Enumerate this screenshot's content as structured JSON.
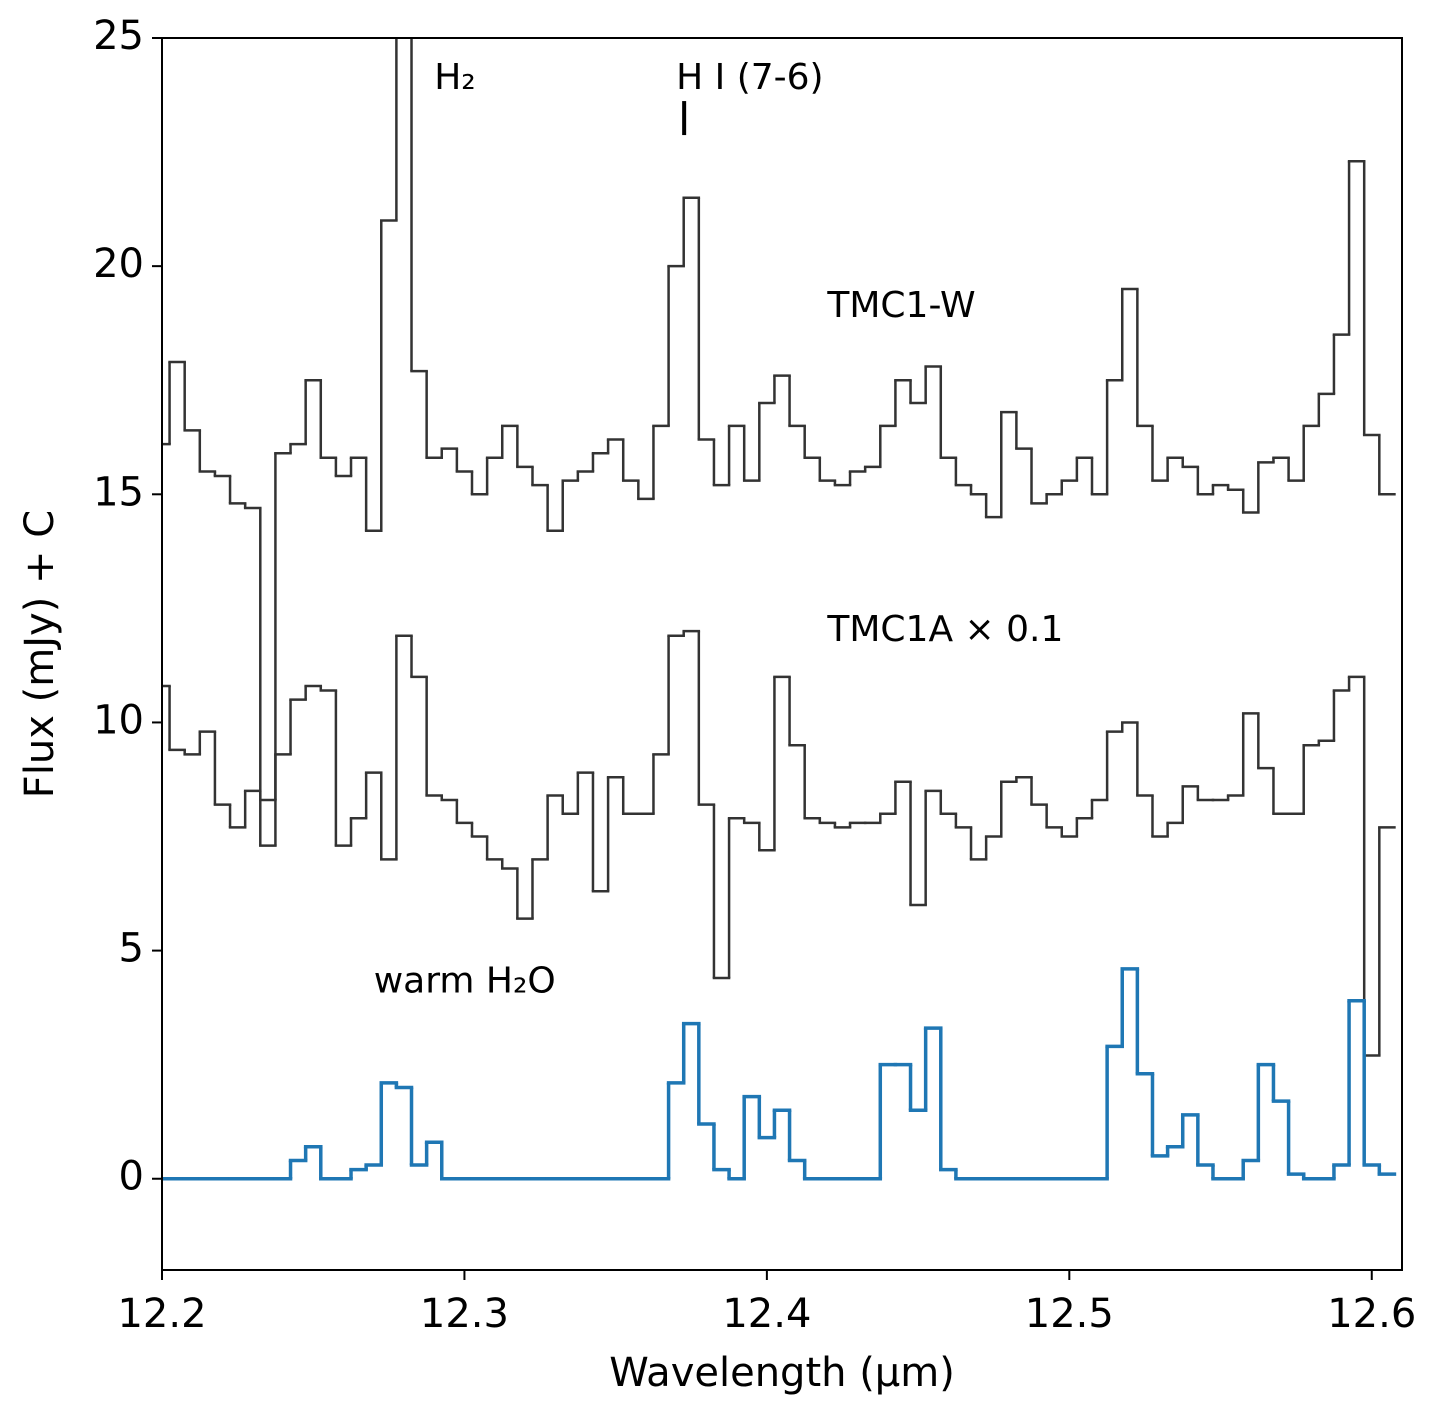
{
  "chart_data": {
    "type": "step",
    "xlabel": "Wavelength (μm)",
    "ylabel": "Flux (mJy) + C",
    "xlim": [
      12.2,
      12.61
    ],
    "ylim": [
      -2,
      25
    ],
    "xticks": [
      12.2,
      12.3,
      12.4,
      12.5,
      12.6
    ],
    "yticks": [
      0,
      5,
      10,
      15,
      20,
      25
    ],
    "x": [
      12.2,
      12.205,
      12.21,
      12.215,
      12.22,
      12.225,
      12.23,
      12.235,
      12.24,
      12.245,
      12.25,
      12.255,
      12.26,
      12.265,
      12.27,
      12.275,
      12.28,
      12.285,
      12.29,
      12.295,
      12.3,
      12.305,
      12.31,
      12.315,
      12.32,
      12.325,
      12.33,
      12.335,
      12.34,
      12.345,
      12.35,
      12.355,
      12.36,
      12.365,
      12.37,
      12.375,
      12.38,
      12.385,
      12.39,
      12.395,
      12.4,
      12.405,
      12.41,
      12.415,
      12.42,
      12.425,
      12.43,
      12.435,
      12.44,
      12.445,
      12.45,
      12.455,
      12.46,
      12.465,
      12.47,
      12.475,
      12.48,
      12.485,
      12.49,
      12.495,
      12.5,
      12.505,
      12.51,
      12.515,
      12.52,
      12.525,
      12.53,
      12.535,
      12.54,
      12.545,
      12.55,
      12.555,
      12.56,
      12.565,
      12.57,
      12.575,
      12.58,
      12.585,
      12.59,
      12.595,
      12.6,
      12.605
    ],
    "series": [
      {
        "color": "#333333",
        "values": [
          16.1,
          17.9,
          16.4,
          15.5,
          15.4,
          14.8,
          14.7,
          8.3,
          15.9,
          16.1,
          17.5,
          15.8,
          15.4,
          15.8,
          14.2,
          21.0,
          27,
          17.7,
          15.8,
          16.0,
          15.5,
          15.0,
          15.8,
          16.5,
          15.6,
          15.2,
          14.2,
          15.3,
          15.5,
          15.9,
          16.2,
          15.3,
          14.9,
          16.5,
          20.0,
          21.5,
          16.2,
          15.2,
          16.5,
          15.3,
          17.0,
          17.6,
          16.5,
          15.8,
          15.3,
          15.2,
          15.5,
          15.6,
          16.5,
          17.5,
          17.0,
          17.8,
          15.8,
          15.2,
          15.0,
          14.5,
          16.8,
          16.0,
          14.8,
          15.0,
          15.3,
          15.8,
          15.0,
          17.5,
          19.5,
          16.5,
          15.3,
          15.8,
          15.6,
          15.0,
          15.2,
          15.1,
          14.6,
          15.7,
          15.8,
          15.3,
          16.5,
          17.2,
          18.5,
          22.3,
          16.3,
          15.0
        ]
      },
      {
        "color": "#333333",
        "values": [
          10.8,
          9.4,
          9.3,
          9.8,
          8.2,
          7.7,
          8.5,
          7.3,
          9.3,
          10.5,
          10.8,
          10.7,
          7.3,
          7.9,
          8.9,
          7.0,
          11.9,
          11.0,
          8.4,
          8.3,
          7.8,
          7.5,
          7.0,
          6.8,
          5.7,
          7.0,
          8.4,
          8.0,
          8.9,
          6.3,
          8.8,
          8.0,
          8.0,
          9.3,
          11.9,
          12.0,
          8.2,
          4.4,
          7.9,
          7.8,
          7.2,
          11.0,
          9.5,
          7.9,
          7.8,
          7.7,
          7.8,
          7.8,
          8.0,
          8.7,
          6.0,
          8.5,
          8.0,
          7.7,
          7.0,
          7.5,
          8.7,
          8.8,
          8.2,
          7.7,
          7.5,
          7.9,
          8.3,
          9.8,
          10.0,
          8.4,
          7.5,
          7.8,
          8.6,
          8.3,
          8.3,
          8.4,
          10.2,
          9.0,
          8.0,
          8.0,
          9.5,
          9.6,
          10.7,
          11.0,
          2.7,
          7.7
        ]
      },
      {
        "color": "#1f77b4",
        "values": [
          0,
          0,
          0,
          0,
          0,
          0,
          0,
          0,
          0,
          0.4,
          0.7,
          0,
          0,
          0.2,
          0.3,
          2.1,
          2.0,
          0.3,
          0.8,
          0,
          0,
          0,
          0,
          0,
          0,
          0,
          0,
          0,
          0,
          0,
          0,
          0,
          0,
          0,
          2.1,
          3.4,
          1.2,
          0.2,
          0,
          1.8,
          0.9,
          1.5,
          0.4,
          0,
          0,
          0,
          0,
          0,
          2.5,
          2.5,
          1.5,
          3.3,
          0.2,
          0,
          0,
          0,
          0,
          0,
          0,
          0,
          0,
          0,
          0,
          2.9,
          4.6,
          2.3,
          0.5,
          0.7,
          1.4,
          0.3,
          0,
          0,
          0.4,
          2.5,
          1.7,
          0.1,
          0,
          0,
          0.3,
          3.9,
          0.3,
          0.1
        ]
      }
    ],
    "annotations": [
      {
        "text": "H₂",
        "x": 12.29,
        "y": 24.1,
        "color": "#808080"
      },
      {
        "text": "H I (7-6)",
        "x": 12.37,
        "y": 24.1,
        "color": "#000000"
      },
      {
        "text": "TMC1-W",
        "x": 12.42,
        "y": 19.1,
        "color": "#000000"
      },
      {
        "text": "TMC1A × 0.1",
        "x": 12.42,
        "y": 12.0,
        "color": "#000000"
      },
      {
        "text": "warm H₂O",
        "x": 12.27,
        "y": 4.3,
        "color": "#1f77b4"
      }
    ]
  }
}
